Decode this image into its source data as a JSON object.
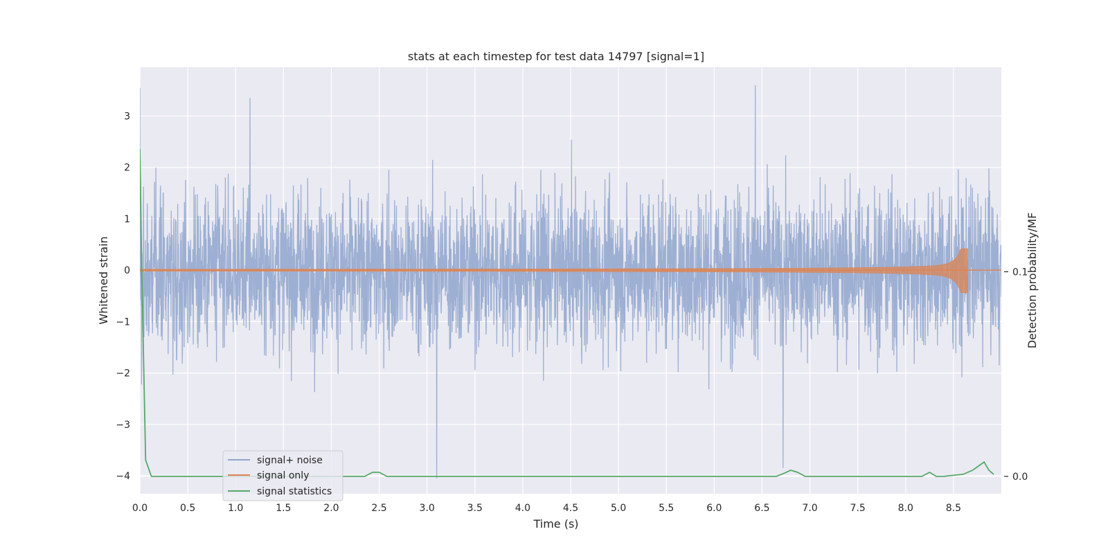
{
  "chart_data": {
    "type": "line",
    "title": "stats at each timestep for test data 14797 [signal=1]",
    "xlabel": "Time (s)",
    "ylabel": "Whitened strain",
    "y2label": "Detection probability/MF",
    "xlim": [
      0.0,
      9.0
    ],
    "ylim": [
      -4.35,
      3.95
    ],
    "y2lim": [
      -0.0085,
      0.2
    ],
    "xticks": [
      "0.0",
      "0.5",
      "1.0",
      "1.5",
      "2.0",
      "2.5",
      "3.0",
      "3.5",
      "4.0",
      "4.5",
      "5.0",
      "5.5",
      "6.0",
      "6.5",
      "7.0",
      "7.5",
      "8.0",
      "8.5"
    ],
    "yticks": [
      "3",
      "2",
      "1",
      "0",
      "−1",
      "−2",
      "−3",
      "−4"
    ],
    "y2ticks": [
      "0.1",
      "0.0"
    ],
    "grid": true,
    "legend_position": "lower-left",
    "series": [
      {
        "name": "signal+ noise",
        "color": "#8fa5cc",
        "description_range": [
          -4.0,
          3.6
        ],
        "notable_peaks": [
          {
            "x": 6.43,
            "y": 3.6
          },
          {
            "x": 0.0,
            "y": 3.55
          },
          {
            "x": 1.15,
            "y": 3.35
          },
          {
            "x": 3.1,
            "y": -4.05
          },
          {
            "x": 6.72,
            "y": -3.85
          }
        ]
      },
      {
        "name": "signal only",
        "color": "#dd8452",
        "chirp_end_x": 8.65,
        "chirp_peak_amplitude": 0.42
      },
      {
        "name": "signal statistics",
        "color": "#55a868",
        "axis": "right",
        "x": [
          0.0,
          0.02,
          0.06,
          0.12,
          2.35,
          2.43,
          2.5,
          2.58,
          6.65,
          6.73,
          6.8,
          6.87,
          6.95,
          8.17,
          8.25,
          8.32,
          8.4,
          8.6,
          8.7,
          8.76,
          8.82,
          8.87,
          8.92
        ],
        "values": [
          0.16,
          0.1,
          0.008,
          0.0,
          0.0,
          0.002,
          0.002,
          0.0,
          0.0,
          0.0015,
          0.003,
          0.002,
          0.0,
          0.0,
          0.002,
          0.0,
          0.0,
          0.001,
          0.003,
          0.005,
          0.007,
          0.003,
          0.001
        ]
      }
    ]
  }
}
